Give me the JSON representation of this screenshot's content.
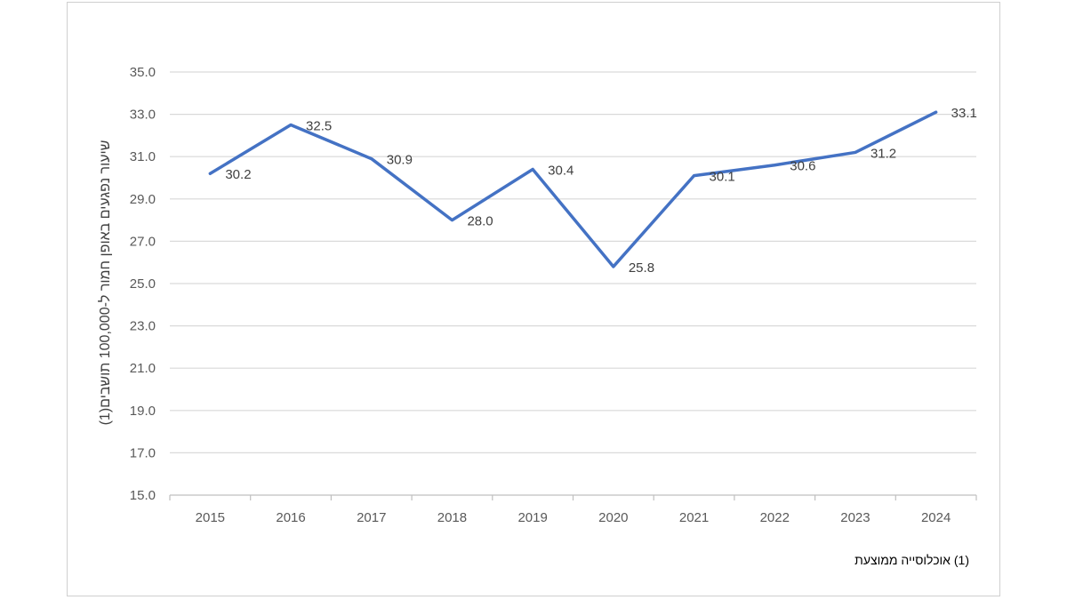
{
  "chart_data": {
    "type": "line",
    "title": "",
    "xlabel": "",
    "ylabel": "שיעור נפגעים באופן חמור ל-100,000 תושבים(1)",
    "categories": [
      "2015",
      "2016",
      "2017",
      "2018",
      "2019",
      "2020",
      "2021",
      "2022",
      "2023",
      "2024"
    ],
    "series": [
      {
        "values": [
          30.2,
          32.5,
          30.9,
          28.0,
          30.4,
          25.8,
          30.1,
          30.6,
          31.2,
          33.1
        ]
      }
    ],
    "data_labels": [
      "30.2",
      "32.5",
      "30.9",
      "28.0",
      "30.4",
      "25.8",
      "30.1",
      "30.6",
      "31.2",
      "33.1"
    ],
    "ylim": [
      15.0,
      35.0
    ],
    "y_ticks": [
      "15.0",
      "17.0",
      "19.0",
      "21.0",
      "23.0",
      "25.0",
      "27.0",
      "29.0",
      "31.0",
      "33.0",
      "35.0"
    ],
    "grid": true,
    "legend": "none",
    "line_color": "#4472C4",
    "footnote": "(1) אוכלוסייה ממוצעת"
  }
}
